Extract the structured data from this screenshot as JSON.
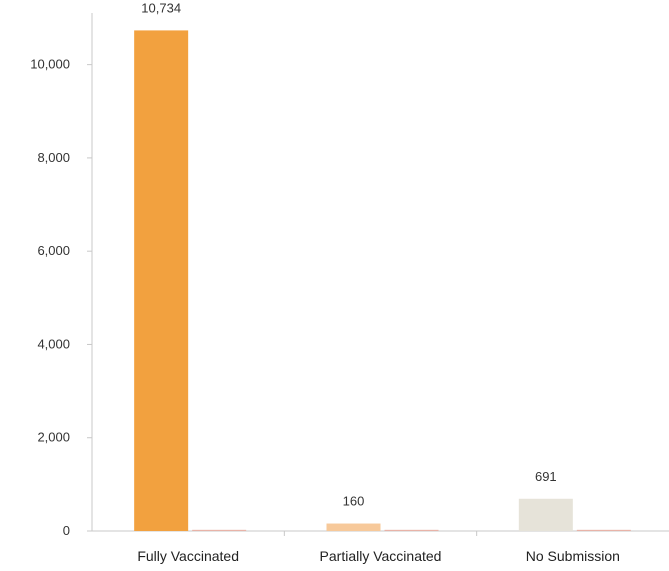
{
  "chart_data": {
    "type": "bar",
    "title": "",
    "xlabel": "",
    "ylabel": "",
    "categories": [
      "Fully Vaccinated",
      "Partially Vaccinated",
      "No Submission"
    ],
    "series": [
      {
        "values": [
          10734,
          160,
          691
        ],
        "data_labels": [
          "10,734",
          "160",
          "691"
        ],
        "colors": [
          "#f2a13f",
          "#f7c99a",
          "#e6e3d9"
        ]
      },
      {
        "values": [
          25,
          25,
          25
        ],
        "colors": [
          "#e8b3a8",
          "#e8b3a8",
          "#e8b3a8"
        ]
      }
    ],
    "ylim": [
      0,
      11000
    ],
    "yticks": [
      0,
      2000,
      4000,
      6000,
      8000,
      10000
    ],
    "ytick_labels": [
      "0",
      "2,000",
      "4,000",
      "6,000",
      "8,000",
      "10,000"
    ],
    "grid": false,
    "legend": "none",
    "axis_color": "#c8c8c8"
  }
}
